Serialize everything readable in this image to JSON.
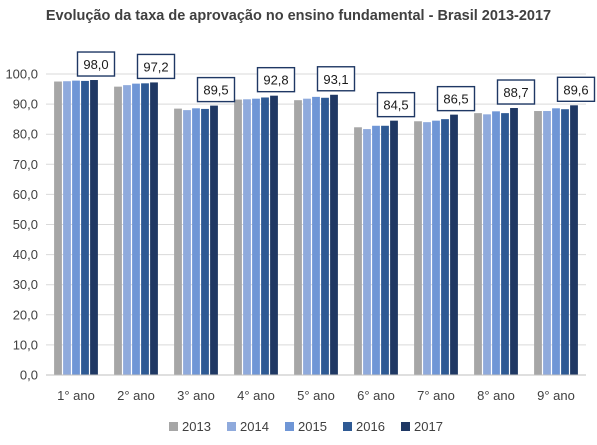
{
  "chart_data": {
    "type": "bar",
    "title": "Evolução da taxa de aprovação no ensino fundamental - Brasil 2013-2017",
    "xlabel": "",
    "ylabel": "",
    "ylim": [
      0,
      100
    ],
    "yticks": [
      "0,0",
      "10,0",
      "20,0",
      "30,0",
      "40,0",
      "50,0",
      "60,0",
      "70,0",
      "80,0",
      "90,0",
      "100,0"
    ],
    "grid": "horizontal",
    "legend_position": "bottom",
    "categories": [
      "1° ano",
      "2° ano",
      "3° ano",
      "4° ano",
      "5° ano",
      "6° ano",
      "7° ano",
      "8° ano",
      "9° ano"
    ],
    "series": [
      {
        "name": "2013",
        "color": "#a6a6a6",
        "values": [
          97.5,
          95.8,
          88.5,
          91.5,
          91.3,
          82.3,
          84.3,
          87.0,
          87.7
        ]
      },
      {
        "name": "2014",
        "color": "#8faadc",
        "values": [
          97.6,
          96.3,
          88.0,
          91.6,
          91.8,
          81.7,
          84.0,
          86.6,
          87.7
        ]
      },
      {
        "name": "2015",
        "color": "#6f96d6",
        "values": [
          97.8,
          96.8,
          88.6,
          91.8,
          92.4,
          82.8,
          84.5,
          87.6,
          88.6
        ]
      },
      {
        "name": "2016",
        "color": "#2e5a94",
        "values": [
          97.7,
          96.9,
          88.4,
          92.2,
          92.1,
          82.8,
          85.0,
          87.0,
          88.3
        ]
      },
      {
        "name": "2017",
        "color": "#1f3864",
        "values": [
          98.0,
          97.2,
          89.5,
          92.8,
          93.1,
          84.5,
          86.5,
          88.7,
          89.6
        ]
      }
    ],
    "data_labels": [
      "98,0",
      "97,2",
      "89,5",
      "92,8",
      "93,1",
      "84,5",
      "86,5",
      "88,7",
      "89,6"
    ]
  }
}
